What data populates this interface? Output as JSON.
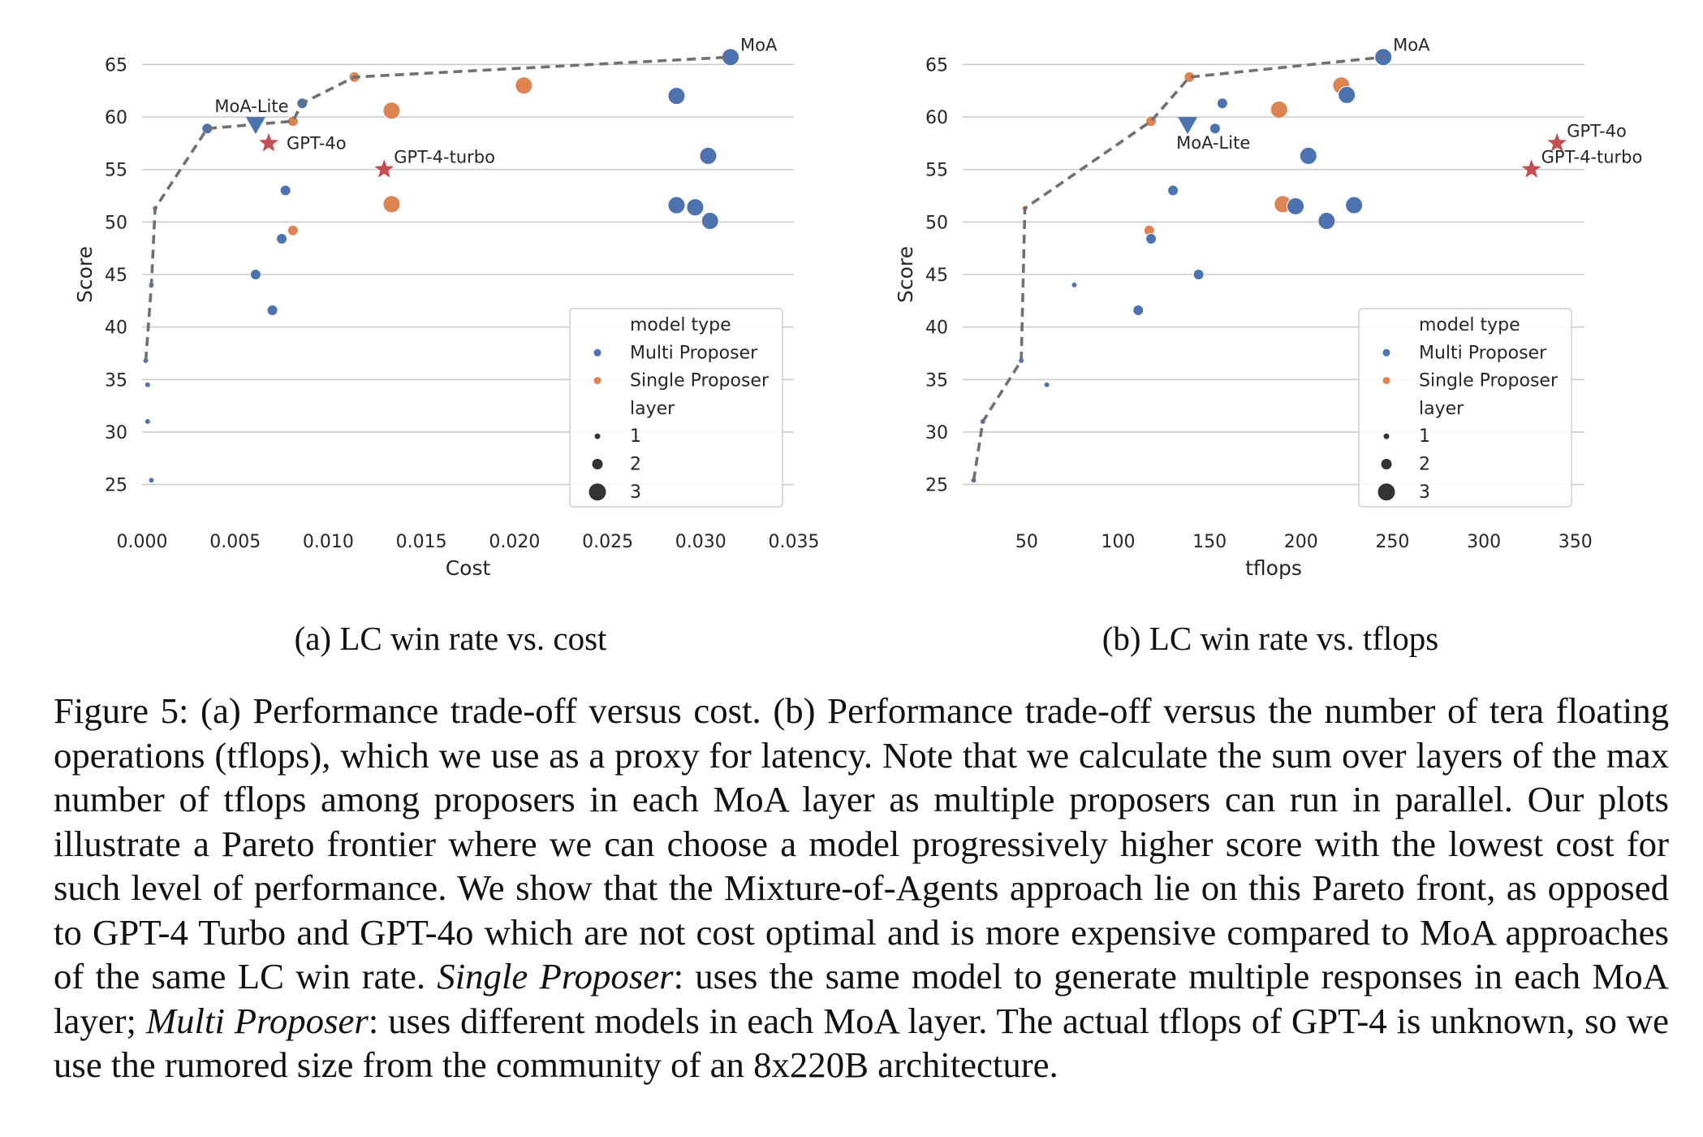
{
  "colors": {
    "multi": "#4c72b0",
    "single": "#dd8452",
    "gpt": "#c44e52",
    "grid": "#cccccc",
    "frontier": "#707070",
    "text": "#262626"
  },
  "legend": {
    "title_type": "model type",
    "multi": "Multi Proposer",
    "single": "Single Proposer",
    "title_layer": "layer",
    "layers": [
      "1",
      "2",
      "3"
    ]
  },
  "panel_titles": [
    "(a) LC win rate vs. cost",
    "(b) LC win rate vs. tflops"
  ],
  "caption": {
    "prefix": "Figure 5: (a) Performance trade-off versus cost. (b) Performance trade-off versus the number of tera floating operations (tflops), which we use as a proxy for latency. Note that we calculate the sum over layers of the max number of tflops among proposers in each MoA layer as multiple proposers can run in parallel. Our plots illustrate a Pareto frontier where we can choose a model progressively higher score with the lowest cost for such level of performance. We show that the Mixture-of-Agents approach lie on this Pareto front, as opposed to GPT-4 Turbo and GPT-4o which are not cost optimal and is more expensive compared to MoA approaches of the same LC win rate.",
    "term1": "Single Proposer",
    "mid": ": uses the same model to generate multiple responses in each MoA layer;",
    "term2": "Multi Proposer",
    "suffix": ": uses different models in each MoA layer. The actual tflops of GPT-4 is unknown, so we use the rumored size from the community of an 8x220B architecture."
  },
  "chart_data": [
    {
      "type": "scatter",
      "xlabel": "Cost",
      "ylabel": "Score",
      "xlim": [
        0.0,
        0.035
      ],
      "ylim": [
        23.5,
        66.5
      ],
      "xticks": [
        0.0,
        0.005,
        0.01,
        0.015,
        0.02,
        0.025,
        0.03,
        0.035
      ],
      "xtick_labels": [
        "0.000",
        "0.005",
        "0.010",
        "0.015",
        "0.020",
        "0.025",
        "0.030",
        "0.035"
      ],
      "yticks": [
        25,
        30,
        35,
        40,
        45,
        50,
        55,
        60,
        65
      ],
      "grid": "horizontal",
      "legend_position": "lower-right",
      "points": [
        {
          "x": 0.0005,
          "y": 25.4,
          "type": "multi",
          "layer": 1
        },
        {
          "x": 0.0003,
          "y": 31.0,
          "type": "multi",
          "layer": 1
        },
        {
          "x": 0.0003,
          "y": 34.5,
          "type": "multi",
          "layer": 1
        },
        {
          "x": 0.0002,
          "y": 36.8,
          "type": "multi",
          "layer": 1
        },
        {
          "x": 0.0005,
          "y": 44.0,
          "type": "multi",
          "layer": 1
        },
        {
          "x": 0.0007,
          "y": 51.3,
          "type": "single",
          "layer": 1
        },
        {
          "x": 0.0035,
          "y": 58.9,
          "type": "multi",
          "layer": 2
        },
        {
          "x": 0.0061,
          "y": 45.0,
          "type": "multi",
          "layer": 2
        },
        {
          "x": 0.007,
          "y": 41.6,
          "type": "multi",
          "layer": 2
        },
        {
          "x": 0.0075,
          "y": 48.4,
          "type": "multi",
          "layer": 2
        },
        {
          "x": 0.0077,
          "y": 53.0,
          "type": "multi",
          "layer": 2
        },
        {
          "x": 0.0081,
          "y": 49.2,
          "type": "single",
          "layer": 2
        },
        {
          "x": 0.0081,
          "y": 59.6,
          "type": "single",
          "layer": 2
        },
        {
          "x": 0.0086,
          "y": 61.3,
          "type": "multi",
          "layer": 2
        },
        {
          "x": 0.0114,
          "y": 63.8,
          "type": "single",
          "layer": 2
        },
        {
          "x": 0.0134,
          "y": 60.6,
          "type": "single",
          "layer": 3
        },
        {
          "x": 0.0134,
          "y": 51.7,
          "type": "single",
          "layer": 3
        },
        {
          "x": 0.0205,
          "y": 63.0,
          "type": "single",
          "layer": 3
        },
        {
          "x": 0.0287,
          "y": 62.0,
          "type": "multi",
          "layer": 3
        },
        {
          "x": 0.0287,
          "y": 51.6,
          "type": "multi",
          "layer": 3
        },
        {
          "x": 0.0297,
          "y": 51.4,
          "type": "multi",
          "layer": 3
        },
        {
          "x": 0.0304,
          "y": 56.3,
          "type": "multi",
          "layer": 3
        },
        {
          "x": 0.0305,
          "y": 50.1,
          "type": "multi",
          "layer": 3
        },
        {
          "x": 0.0316,
          "y": 65.7,
          "type": "multi",
          "layer": 3
        }
      ],
      "specials": [
        {
          "name": "MoA",
          "x": 0.0316,
          "y": 65.7,
          "marker": "none",
          "label": "MoA",
          "anchor": "right-up"
        },
        {
          "name": "MoA-Lite",
          "x": 0.0061,
          "y": 59.3,
          "marker": "triangle",
          "label": "MoA-Lite",
          "anchor": "above-left"
        },
        {
          "name": "GPT-4o",
          "x": 0.0068,
          "y": 57.5,
          "marker": "star",
          "label": "GPT-4o",
          "anchor": "right"
        },
        {
          "name": "GPT-4-turbo",
          "x": 0.013,
          "y": 55.0,
          "marker": "star",
          "label": "GPT-4-turbo",
          "anchor": "right-up"
        }
      ],
      "frontier": [
        [
          0.0002,
          36.8
        ],
        [
          0.0005,
          44.0
        ],
        [
          0.0007,
          51.3
        ],
        [
          0.0035,
          58.9
        ],
        [
          0.0081,
          59.6
        ],
        [
          0.0086,
          61.3
        ],
        [
          0.0114,
          63.8
        ],
        [
          0.0316,
          65.7
        ]
      ]
    },
    {
      "type": "scatter",
      "xlabel": "tflops",
      "ylabel": "Score",
      "xlim": [
        15,
        355
      ],
      "ylim": [
        23.5,
        66.5
      ],
      "xticks": [
        50,
        100,
        150,
        200,
        250,
        300,
        350
      ],
      "xtick_labels": [
        "50",
        "100",
        "150",
        "200",
        "250",
        "300",
        "350"
      ],
      "yticks": [
        25,
        30,
        35,
        40,
        45,
        50,
        55,
        60,
        65
      ],
      "grid": "horizontal",
      "legend_position": "lower-right",
      "points": [
        {
          "x": 21,
          "y": 25.4,
          "type": "multi",
          "layer": 1
        },
        {
          "x": 26,
          "y": 31.0,
          "type": "multi",
          "layer": 1
        },
        {
          "x": 47,
          "y": 36.8,
          "type": "multi",
          "layer": 1
        },
        {
          "x": 49,
          "y": 51.3,
          "type": "single",
          "layer": 1
        },
        {
          "x": 61,
          "y": 34.5,
          "type": "multi",
          "layer": 1
        },
        {
          "x": 76,
          "y": 44.0,
          "type": "multi",
          "layer": 1
        },
        {
          "x": 111,
          "y": 41.6,
          "type": "multi",
          "layer": 2
        },
        {
          "x": 117,
          "y": 49.2,
          "type": "single",
          "layer": 2
        },
        {
          "x": 118,
          "y": 48.4,
          "type": "multi",
          "layer": 2
        },
        {
          "x": 118,
          "y": 59.6,
          "type": "single",
          "layer": 2
        },
        {
          "x": 130,
          "y": 53.0,
          "type": "multi",
          "layer": 2
        },
        {
          "x": 139,
          "y": 63.8,
          "type": "single",
          "layer": 2
        },
        {
          "x": 144,
          "y": 45.0,
          "type": "multi",
          "layer": 2
        },
        {
          "x": 153,
          "y": 58.9,
          "type": "multi",
          "layer": 2
        },
        {
          "x": 157,
          "y": 61.3,
          "type": "multi",
          "layer": 2
        },
        {
          "x": 188,
          "y": 60.7,
          "type": "single",
          "layer": 3
        },
        {
          "x": 190,
          "y": 51.7,
          "type": "single",
          "layer": 3
        },
        {
          "x": 197,
          "y": 51.5,
          "type": "multi",
          "layer": 3
        },
        {
          "x": 204,
          "y": 56.3,
          "type": "multi",
          "layer": 3
        },
        {
          "x": 214,
          "y": 50.1,
          "type": "multi",
          "layer": 3
        },
        {
          "x": 222,
          "y": 63.0,
          "type": "single",
          "layer": 3
        },
        {
          "x": 225,
          "y": 62.1,
          "type": "multi",
          "layer": 3
        },
        {
          "x": 229,
          "y": 51.6,
          "type": "multi",
          "layer": 3
        },
        {
          "x": 245,
          "y": 65.7,
          "type": "multi",
          "layer": 3
        }
      ],
      "specials": [
        {
          "name": "MoA",
          "x": 245,
          "y": 65.7,
          "marker": "none",
          "label": "MoA",
          "anchor": "right-up"
        },
        {
          "name": "MoA-Lite",
          "x": 138,
          "y": 59.3,
          "marker": "triangle",
          "label": "MoA-Lite",
          "anchor": "below-right"
        },
        {
          "name": "GPT-4o",
          "x": 340,
          "y": 57.5,
          "marker": "star",
          "label": "GPT-4o",
          "anchor": "right-up"
        },
        {
          "name": "GPT-4-turbo",
          "x": 326,
          "y": 55.0,
          "marker": "star",
          "label": "GPT-4-turbo",
          "anchor": "right-up"
        }
      ],
      "frontier": [
        [
          21,
          25.4
        ],
        [
          26,
          31.0
        ],
        [
          47,
          36.8
        ],
        [
          49,
          51.3
        ],
        [
          118,
          59.6
        ],
        [
          139,
          63.8
        ],
        [
          245,
          65.7
        ]
      ]
    }
  ]
}
